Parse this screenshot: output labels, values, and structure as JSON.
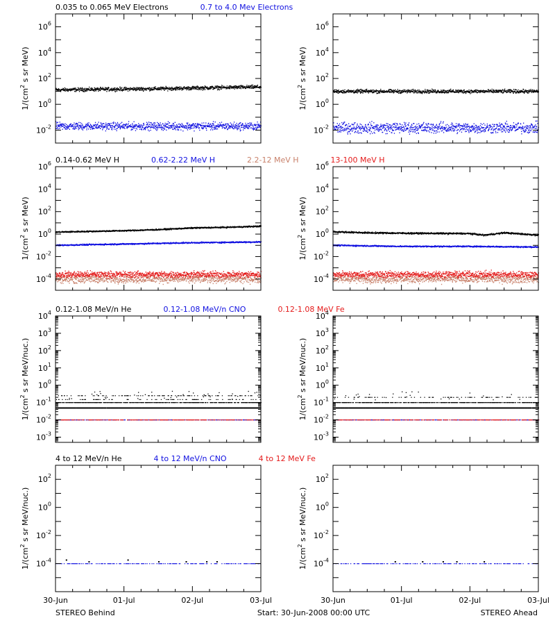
{
  "footer": {
    "left": "STEREO Behind",
    "center": "Start: 30-Jun-2008 00:00 UTC",
    "right": "STEREO Ahead"
  },
  "xaxis": {
    "tick_labels": [
      "30-Jun",
      "01-Jul",
      "02-Jul",
      "03-Jul"
    ],
    "range_days": [
      0,
      3
    ]
  },
  "colors": {
    "black": "#000000",
    "blue": "#1010e0",
    "salmon": "#c8806a",
    "red": "#e41a1a"
  },
  "chart_data": [
    {
      "type": "scatter",
      "panel": "electrons",
      "legend": [
        {
          "text": "0.035 to 0.065 MeV Electrons",
          "color": "#000000"
        },
        {
          "text": "0.7 to 4.0 Mev Electrons",
          "color": "#1010e0"
        }
      ],
      "ylabel": "1/(cm² s sr MeV)",
      "yscale": "log",
      "ylim": [
        0.001,
        10000000
      ],
      "yticks": [
        {
          "exp": "-2",
          "v": 0.01
        },
        {
          "exp": "0",
          "v": 1
        },
        {
          "exp": "2",
          "v": 100
        },
        {
          "exp": "4",
          "v": 10000
        },
        {
          "exp": "6",
          "v": 1000000
        }
      ],
      "behind": [
        {
          "name": "0.035 to 0.065 MeV Electrons",
          "color": "#000000",
          "x": [
            0,
            0.5,
            1,
            1.5,
            2,
            2.5,
            3
          ],
          "y": [
            13,
            14,
            15,
            16,
            18,
            20,
            22
          ],
          "scatter": 0.12
        },
        {
          "name": "0.7 to 4.0 Mev Electrons",
          "color": "#1010e0",
          "x": [
            0,
            1,
            2,
            3
          ],
          "y": [
            0.02,
            0.02,
            0.02,
            0.02
          ],
          "scatter": 0.25
        }
      ],
      "ahead": [
        {
          "name": "0.035 to 0.065 MeV Electrons",
          "color": "#000000",
          "x": [
            0,
            1,
            2,
            3
          ],
          "y": [
            10,
            10,
            10,
            10
          ],
          "scatter": 0.12
        },
        {
          "name": "0.7 to 4.0 Mev Electrons",
          "color": "#1010e0",
          "x": [
            0,
            1,
            2,
            3
          ],
          "y": [
            0.015,
            0.015,
            0.015,
            0.015
          ],
          "scatter": 0.35
        }
      ]
    },
    {
      "type": "scatter",
      "panel": "protons",
      "legend": [
        {
          "text": "0.14-0.62 MeV H",
          "color": "#000000"
        },
        {
          "text": "0.62-2.22 MeV H",
          "color": "#1010e0"
        },
        {
          "text": "2.2-12 MeV H",
          "color": "#c8806a"
        },
        {
          "text": "13-100 MeV H",
          "color": "#e41a1a"
        }
      ],
      "ylabel": "1/(cm² s sr MeV)",
      "yscale": "log",
      "ylim": [
        1e-05,
        1000000
      ],
      "yticks": [
        {
          "exp": "-4",
          "v": 0.0001
        },
        {
          "exp": "-2",
          "v": 0.01
        },
        {
          "exp": "0",
          "v": 1
        },
        {
          "exp": "2",
          "v": 100
        },
        {
          "exp": "4",
          "v": 10000
        },
        {
          "exp": "6",
          "v": 1000000
        }
      ],
      "behind": [
        {
          "name": "0.14-0.62 MeV H",
          "color": "#000000",
          "x": [
            0,
            1,
            1.5,
            2,
            2.5,
            3
          ],
          "y": [
            1.5,
            2,
            2.5,
            3.5,
            4,
            5
          ],
          "scatter": 0.05
        },
        {
          "name": "0.62-2.22 MeV H",
          "color": "#1010e0",
          "x": [
            0,
            1,
            2,
            3
          ],
          "y": [
            0.1,
            0.13,
            0.17,
            0.2
          ],
          "scatter": 0.05
        },
        {
          "name": "2.2-12 MeV H",
          "color": "#c8806a",
          "x": [
            0,
            3
          ],
          "y": [
            0.0001,
            0.0001
          ],
          "scatter": 0.3
        },
        {
          "name": "13-100 MeV H",
          "color": "#e41a1a",
          "x": [
            0,
            3
          ],
          "y": [
            0.00025,
            0.00025
          ],
          "scatter": 0.25
        }
      ],
      "ahead": [
        {
          "name": "0.14-0.62 MeV H",
          "color": "#000000",
          "x": [
            0,
            0.5,
            1,
            2,
            2.2,
            2.5,
            3
          ],
          "y": [
            1.6,
            1.3,
            1.2,
            1.1,
            0.8,
            1.3,
            0.8
          ],
          "scatter": 0.06
        },
        {
          "name": "0.62-2.22 MeV H",
          "color": "#1010e0",
          "x": [
            0,
            1,
            2,
            3
          ],
          "y": [
            0.1,
            0.08,
            0.08,
            0.07
          ],
          "scatter": 0.05
        },
        {
          "name": "2.2-12 MeV H",
          "color": "#c8806a",
          "x": [
            0,
            3
          ],
          "y": [
            0.0001,
            0.0001
          ],
          "scatter": 0.3
        },
        {
          "name": "13-100 MeV H",
          "color": "#e41a1a",
          "x": [
            0,
            3
          ],
          "y": [
            0.00025,
            0.00025
          ],
          "scatter": 0.25
        }
      ]
    },
    {
      "type": "scatter",
      "panel": "suprathermal-ions",
      "legend": [
        {
          "text": "0.12-1.08 MeV/n He",
          "color": "#000000"
        },
        {
          "text": "0.12-1.08 MeV/n CNO",
          "color": "#1010e0"
        },
        {
          "text": "0.12-1.08 MeV Fe",
          "color": "#e41a1a"
        }
      ],
      "ylabel": "1/(cm² s sr MeV/nuc.)",
      "yscale": "log",
      "ylim": [
        0.0005,
        10000
      ],
      "yticks": [
        {
          "exp": "-3",
          "v": 0.001
        },
        {
          "exp": "-2",
          "v": 0.01
        },
        {
          "exp": "-1",
          "v": 0.1
        },
        {
          "exp": "0",
          "v": 1
        },
        {
          "exp": "1",
          "v": 10
        },
        {
          "exp": "2",
          "v": 100
        },
        {
          "exp": "3",
          "v": 1000
        },
        {
          "exp": "4",
          "v": 10000
        }
      ],
      "behind": [
        {
          "name": "0.12-1.08 MeV/n He",
          "color": "#000000",
          "x": [
            0,
            3
          ],
          "y": [
            0.05,
            0.05
          ],
          "levels": [
            0.05,
            0.1,
            0.15,
            0.25
          ]
        },
        {
          "name": "0.12-1.08 MeV/n CNO",
          "color": "#1010e0",
          "x": [
            0,
            3
          ],
          "y": [
            0.01,
            0.01
          ]
        },
        {
          "name": "0.12-1.08 MeV Fe",
          "color": "#e41a1a",
          "x": [
            0,
            3
          ],
          "y": [
            0.01,
            0.01
          ]
        }
      ],
      "ahead": [
        {
          "name": "0.12-1.08 MeV/n He",
          "color": "#000000",
          "x": [
            0,
            3
          ],
          "y": [
            0.05,
            0.05
          ],
          "levels": [
            0.05,
            0.1,
            0.2
          ]
        },
        {
          "name": "0.12-1.08 MeV/n CNO",
          "color": "#1010e0",
          "x": [
            0,
            3
          ],
          "y": [
            0.01,
            0.01
          ]
        },
        {
          "name": "0.12-1.08 MeV Fe",
          "color": "#e41a1a",
          "x": [
            0,
            3
          ],
          "y": [
            0.01,
            0.01
          ]
        }
      ]
    },
    {
      "type": "scatter",
      "panel": "energetic-ions",
      "legend": [
        {
          "text": "4 to 12 MeV/n He",
          "color": "#000000"
        },
        {
          "text": "4 to 12 MeV/n CNO",
          "color": "#1010e0"
        },
        {
          "text": "4 to 12 MeV Fe",
          "color": "#e41a1a"
        }
      ],
      "ylabel": "1/(cm² s sr MeV/nuc.)",
      "yscale": "log",
      "ylim": [
        1e-06,
        1000
      ],
      "yticks": [
        {
          "exp": "-4",
          "v": 0.0001
        },
        {
          "exp": "-2",
          "v": 0.01
        },
        {
          "exp": "0",
          "v": 1
        },
        {
          "exp": "2",
          "v": 100
        }
      ],
      "behind": [
        {
          "name": "4 to 12 MeV/n He",
          "color": "#000000",
          "x": [
            0.15,
            0.48,
            1.05,
            1.5,
            1.9,
            2.2,
            2.35
          ],
          "y": [
            0.0002,
            0.00015,
            0.0002,
            0.00015,
            0.00015,
            0.00015,
            0.00015
          ]
        },
        {
          "name": "4 to 12 MeV/n CNO",
          "color": "#1010e0",
          "x": [
            0,
            3
          ],
          "y": [
            0.0001,
            0.0001
          ]
        }
      ],
      "ahead": [
        {
          "name": "4 to 12 MeV/n He",
          "color": "#000000",
          "x": [
            0.9,
            1.3,
            1.6,
            1.8,
            2.2
          ],
          "y": [
            0.00015,
            0.00015,
            0.00015,
            0.00015,
            0.00015
          ]
        },
        {
          "name": "4 to 12 MeV/n CNO",
          "color": "#1010e0",
          "x": [
            0,
            3
          ],
          "y": [
            0.0001,
            0.0001
          ]
        }
      ]
    }
  ]
}
